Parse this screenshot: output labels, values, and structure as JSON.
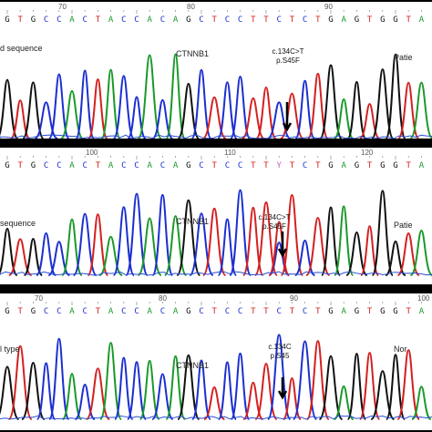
{
  "panels": [
    {
      "sequence": "GTGCCACTACCACAGCTCCTTCTCTGAGTGGTA",
      "ruler": [
        "70",
        "80",
        "90"
      ],
      "label": "d sequence",
      "gene": "CTNNB1",
      "mutation": [
        "c.134C>T",
        "p.S45F"
      ],
      "sample": "Patie"
    },
    {
      "sequence": "GTGCCACTACCACAGCTCCTTYTCTGAGTGGTA",
      "ruler": [
        "100",
        "110",
        "120"
      ],
      "label": "sequence",
      "gene": "CTNNB1",
      "mutation": [
        "c.134C>T",
        "p.S45F"
      ],
      "sample": "Patie"
    },
    {
      "sequence": "GTGCCACTACCACAGCTCCTTCTCTGAGTGGTA",
      "ruler": [
        "70",
        "80",
        "90",
        "100"
      ],
      "label": "l type",
      "gene": "CTNNB1",
      "mutation": [
        "c.134C",
        "p.S45"
      ],
      "sample": "Nor"
    }
  ],
  "base_colors": {
    "A": "#1a9a2a",
    "C": "#1c2fd0",
    "G": "#111111",
    "T": "#d42020",
    "Y": "#c060c0"
  }
}
